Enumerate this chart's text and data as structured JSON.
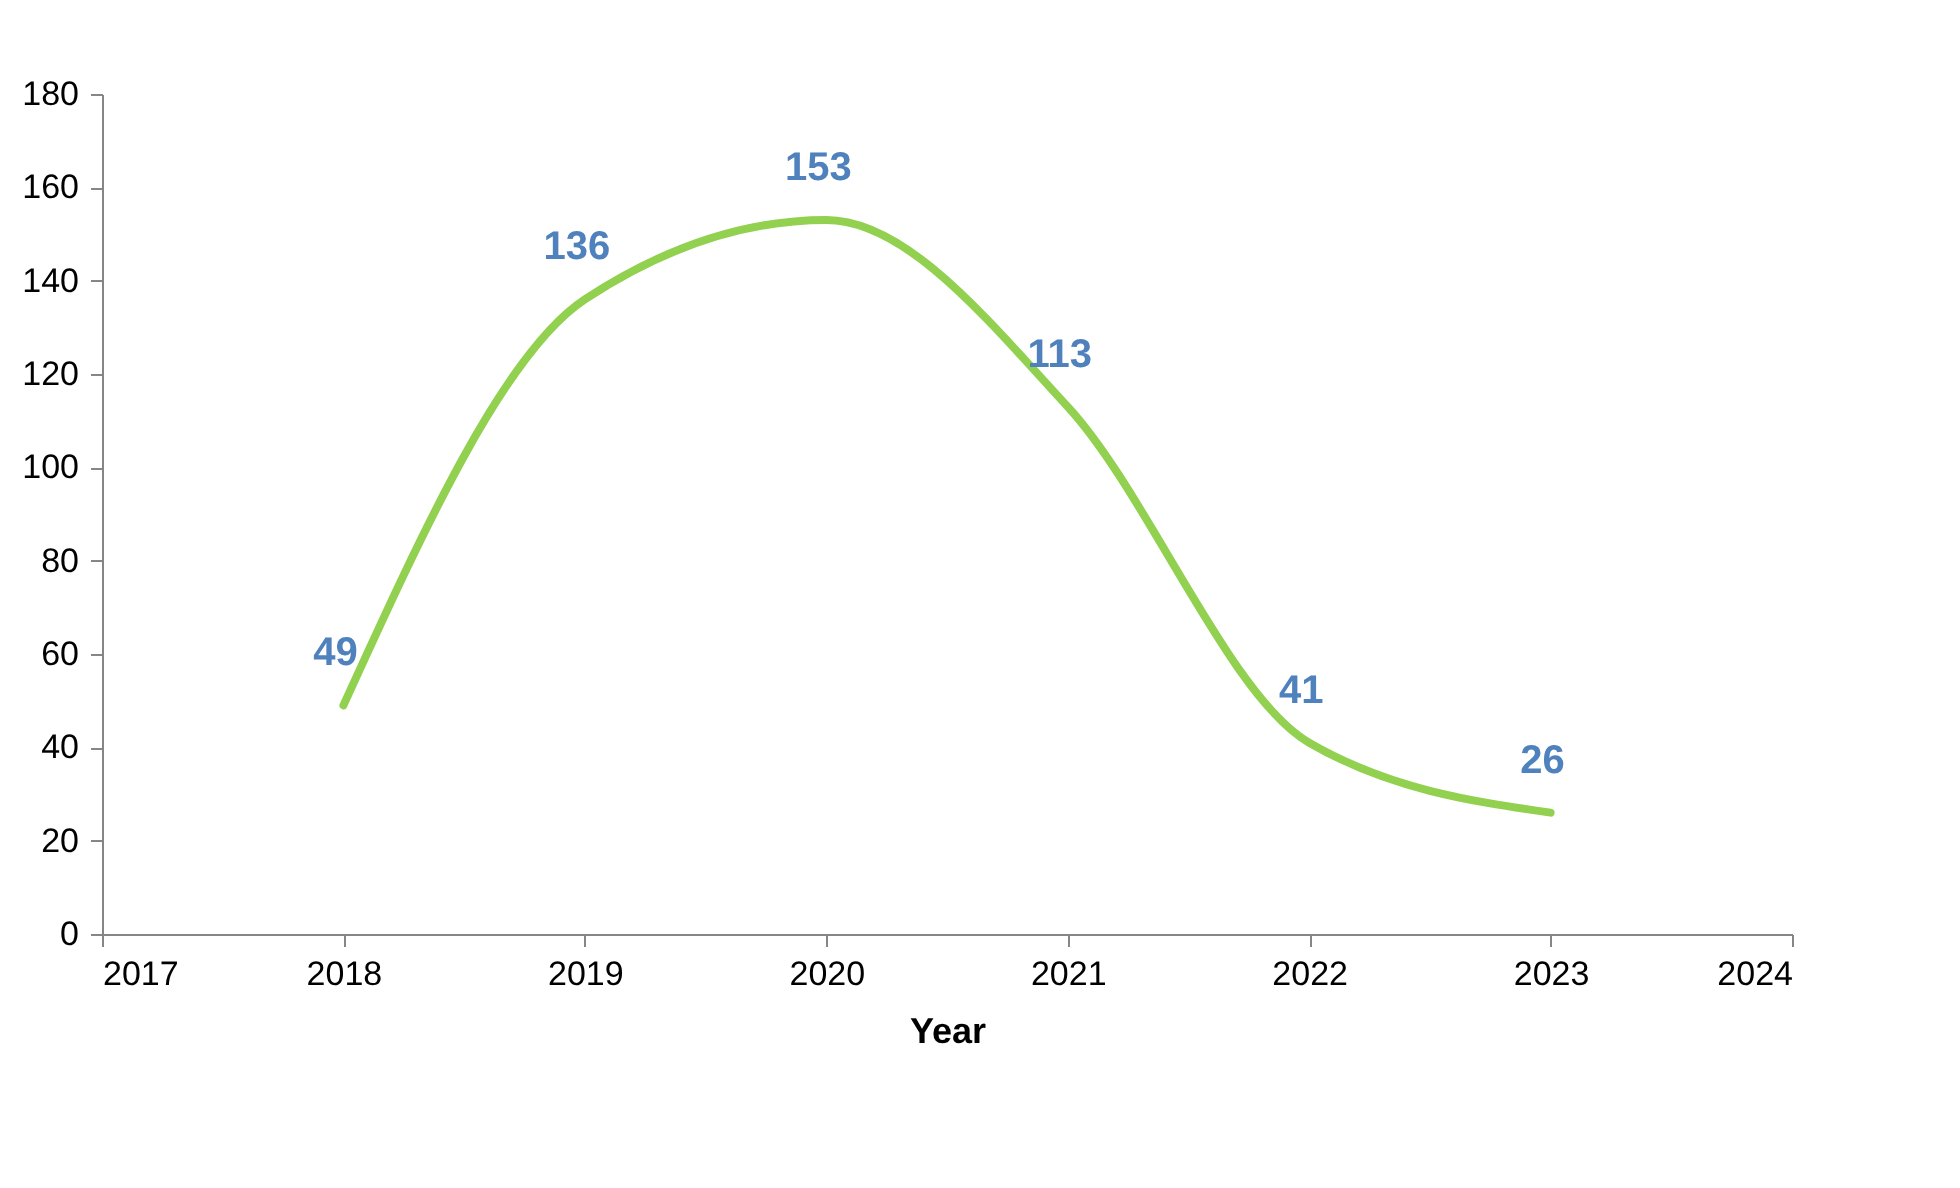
{
  "chart_data": {
    "type": "line",
    "xlabel": "Year",
    "x": [
      2018,
      2019,
      2020,
      2021,
      2022,
      2023
    ],
    "series": [
      {
        "color": "#92d050",
        "values": [
          49,
          136,
          153,
          113,
          41,
          26
        ]
      }
    ],
    "xlim": [
      2017,
      2024
    ],
    "xticks": [
      2017,
      2018,
      2019,
      2020,
      2021,
      2022,
      2023,
      2024
    ],
    "ylim": [
      0,
      180
    ],
    "yticks": [
      0,
      20,
      40,
      60,
      80,
      100,
      120,
      140,
      160,
      180
    ],
    "grid": false,
    "marker": "none",
    "line_style": "solid",
    "data_labels": true
  }
}
